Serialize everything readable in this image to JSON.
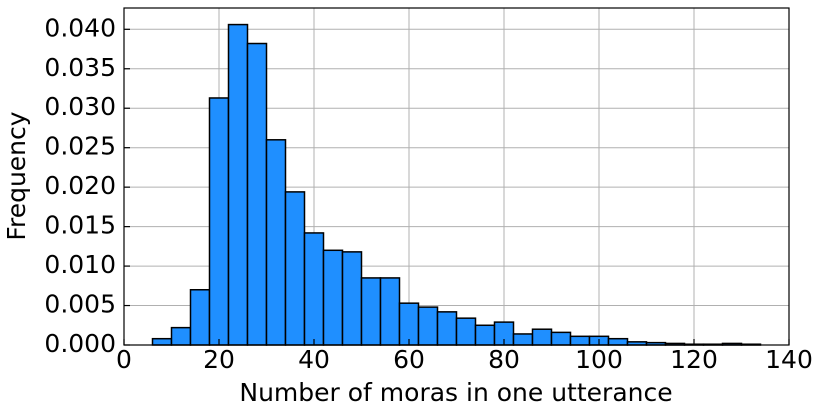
{
  "chart_data": {
    "type": "histogram",
    "xlabel": "Number of moras in one utterance",
    "ylabel": "Frequency",
    "bins": [
      6,
      10,
      14,
      18,
      22,
      26,
      30,
      34,
      38,
      42,
      46,
      50,
      54,
      58,
      62,
      66,
      70,
      74,
      78,
      82,
      86,
      90,
      94,
      98,
      102,
      106,
      110,
      114,
      118,
      122,
      126,
      130,
      134
    ],
    "values": [
      0.0008,
      0.0022,
      0.007,
      0.0313,
      0.0406,
      0.0382,
      0.026,
      0.0194,
      0.0142,
      0.012,
      0.0118,
      0.0085,
      0.0085,
      0.0053,
      0.0048,
      0.0042,
      0.0034,
      0.0025,
      0.0029,
      0.0014,
      0.002,
      0.0016,
      0.0011,
      0.0011,
      0.0008,
      0.0004,
      0.0003,
      0.0002,
      0.0001,
      0.0001,
      0.0002,
      0.0001
    ],
    "color": "#1f8fff",
    "edgecolor": "#000000",
    "xlim": [
      0,
      140
    ],
    "xticks": [
      0,
      20,
      40,
      60,
      80,
      100,
      120,
      140
    ],
    "ylim": [
      0,
      0.0427
    ],
    "yticks": [
      {
        "value": 0,
        "label": "0.000"
      },
      {
        "value": 0.005,
        "label": "0.005"
      },
      {
        "value": 0.01,
        "label": "0.010"
      },
      {
        "value": 0.015,
        "label": "0.015"
      },
      {
        "value": 0.02,
        "label": "0.020"
      },
      {
        "value": 0.025,
        "label": "0.025"
      },
      {
        "value": 0.03,
        "label": "0.030"
      },
      {
        "value": 0.035,
        "label": "0.035"
      },
      {
        "value": 0.04,
        "label": "0.040"
      }
    ],
    "grid": true
  }
}
